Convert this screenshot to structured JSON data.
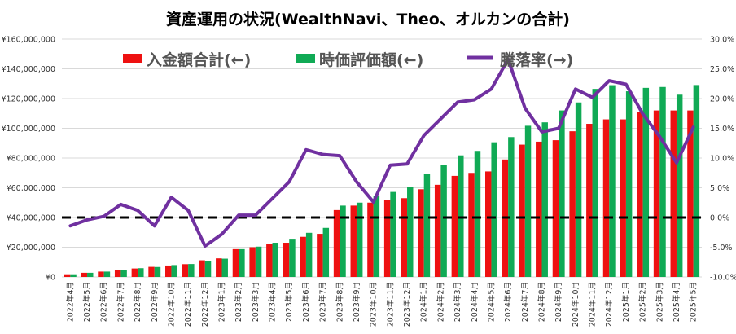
{
  "chart_data": {
    "type": "bar",
    "title": "資産運用の状況(WealthNavi、Theo、オルカンの合計)",
    "legend": {
      "placement": "top"
    },
    "grid": true,
    "colors": {
      "deposit": "#ee1111",
      "value": "#10aa55",
      "rate": "#7030a0",
      "baseline": "#000000",
      "grid": "#d9d9d9"
    },
    "categories": [
      "2022年4月",
      "2022年5月",
      "2022年6月",
      "2022年7月",
      "2022年8月",
      "2022年9月",
      "2022年10月",
      "2022年11月",
      "2022年12月",
      "2023年1月",
      "2023年2月",
      "2023年3月",
      "2023年4月",
      "2023年5月",
      "2023年6月",
      "2023年7月",
      "2023年8月",
      "2023年9月",
      "2023年10月",
      "2023年11月",
      "2023年12月",
      "2024年1月",
      "2024年2月",
      "2024年3月",
      "2024年4月",
      "2024年5月",
      "2024年6月",
      "2024年7月",
      "2024年8月",
      "2024年9月",
      "2024年10月",
      "2024年11月",
      "2024年12月",
      "2025年1月",
      "2025年2月",
      "2025年3月",
      "2025年4月",
      "2025年5月"
    ],
    "ylim_left": [
      0,
      160000000
    ],
    "ylim_right": [
      -10,
      30
    ],
    "yticks_left": [
      "¥160,000,000",
      "¥140,000,000",
      "¥120,000,000",
      "¥100,000,000",
      "¥80,000,000",
      "¥60,000,000",
      "¥40,000,000",
      "¥20,000,000",
      "¥0"
    ],
    "yticks_right": [
      "30.0%",
      "25.0%",
      "20.0%",
      "15.0%",
      "10.0%",
      "5.0%",
      "0.0%",
      "-5.0%",
      "-10.0%"
    ],
    "series": [
      {
        "name": "入金額合計(←)",
        "type": "bar",
        "axis": "left",
        "values": [
          1800000,
          2800000,
          3600000,
          4700000,
          5700000,
          6800000,
          7700000,
          8600000,
          11200000,
          12500000,
          18700000,
          20000000,
          22000000,
          23000000,
          27000000,
          29000000,
          45000000,
          48000000,
          50000000,
          52000000,
          53000000,
          59000000,
          62000000,
          68000000,
          70000000,
          71000000,
          79000000,
          89000000,
          91000000,
          92000000,
          98000000,
          103000000,
          106000000,
          106000000,
          111000000,
          112000000,
          112000000,
          112000000
        ]
      },
      {
        "name": "時価評価額(←)",
        "type": "bar",
        "axis": "left",
        "values": [
          1800000,
          2800000,
          3600000,
          4800000,
          5900000,
          6700000,
          8000000,
          8700000,
          10700000,
          12300000,
          18700000,
          20400000,
          23000000,
          25700000,
          29700000,
          33000000,
          48000000,
          50000000,
          54500000,
          57200000,
          60800000,
          69300000,
          75500000,
          81800000,
          84800000,
          90600000,
          94100000,
          101700000,
          104000000,
          112000000,
          117400000,
          126500000,
          129000000,
          124900000,
          127200000,
          127800000,
          122600000,
          129100000
        ]
      },
      {
        "name": "騰落率(→)",
        "type": "line",
        "axis": "right",
        "values": [
          -1.4,
          -0.4,
          0.2,
          2.2,
          1.2,
          -1.4,
          3.4,
          1.2,
          -4.8,
          -2.8,
          0.4,
          0.4,
          3.2,
          6.0,
          11.4,
          10.6,
          10.4,
          6.0,
          2.6,
          8.8,
          9.0,
          13.8,
          16.6,
          19.4,
          19.8,
          21.6,
          26.6,
          18.4,
          14.4,
          15.0,
          21.6,
          20.2,
          23.0,
          22.4,
          17.4,
          13.6,
          9.2,
          15.2
        ]
      }
    ]
  }
}
